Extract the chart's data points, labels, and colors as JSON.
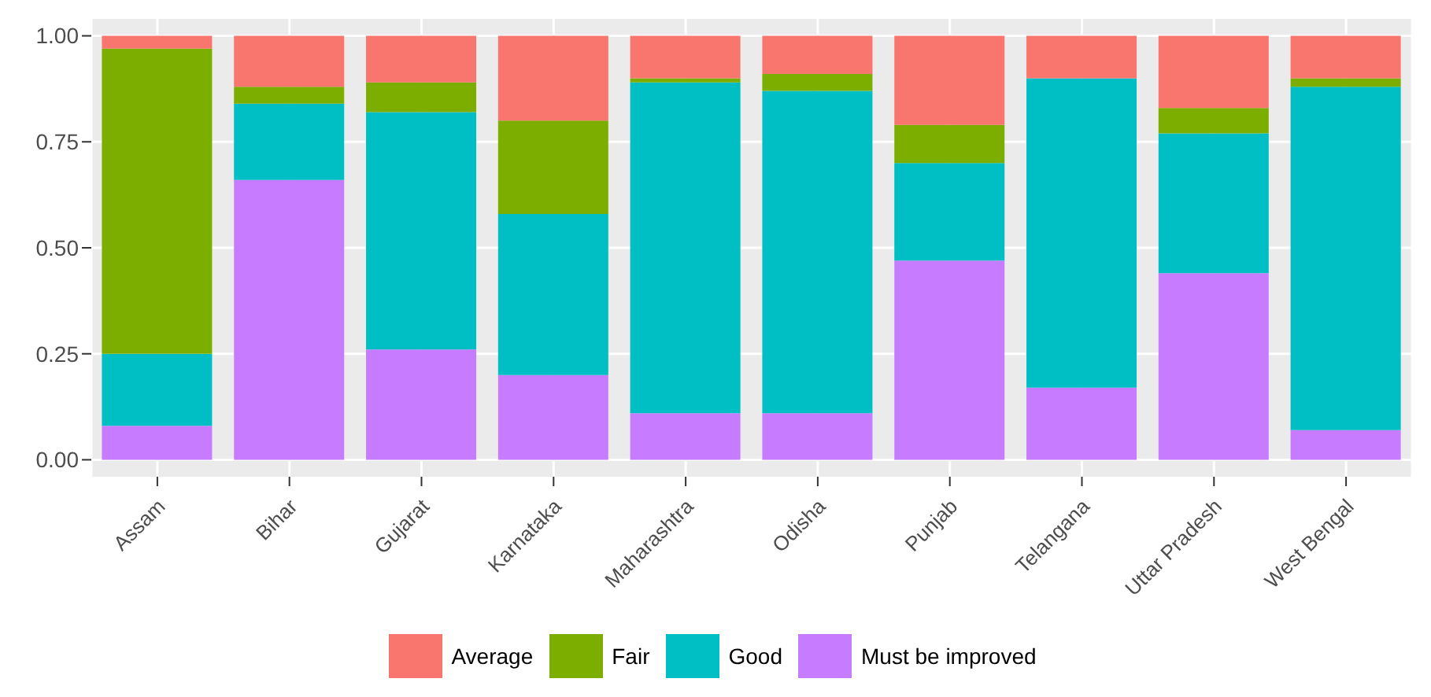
{
  "chart_data": {
    "type": "bar",
    "stacked": true,
    "categories": [
      "Assam",
      "Bihar",
      "Gujarat",
      "Karnataka",
      "Maharashtra",
      "Odisha",
      "Punjab",
      "Telangana",
      "Uttar Pradesh",
      "West Bengal"
    ],
    "series": [
      {
        "name": "Must be improved",
        "color": "#c77cff",
        "values": [
          0.08,
          0.66,
          0.26,
          0.2,
          0.11,
          0.11,
          0.47,
          0.17,
          0.44,
          0.07
        ]
      },
      {
        "name": "Good",
        "color": "#00bfc4",
        "values": [
          0.17,
          0.18,
          0.56,
          0.38,
          0.78,
          0.76,
          0.23,
          0.73,
          0.33,
          0.81
        ]
      },
      {
        "name": "Fair",
        "color": "#7cae00",
        "values": [
          0.72,
          0.04,
          0.07,
          0.22,
          0.01,
          0.04,
          0.09,
          0,
          0.06,
          0.02
        ]
      },
      {
        "name": "Average",
        "color": "#f8766d",
        "values": [
          0.03,
          0.12,
          0.11,
          0.2,
          0.1,
          0.09,
          0.21,
          0.1,
          0.17,
          0.1
        ]
      }
    ],
    "ylim": [
      -0.04,
      1.04
    ],
    "yticks": [
      {
        "value": 0,
        "label": "0.00"
      },
      {
        "value": 0.25,
        "label": "0.25"
      },
      {
        "value": 0.5,
        "label": "0.50"
      },
      {
        "value": 0.75,
        "label": "0.75"
      },
      {
        "value": 1,
        "label": "1.00"
      }
    ],
    "grid": true,
    "legend": "bottom"
  }
}
